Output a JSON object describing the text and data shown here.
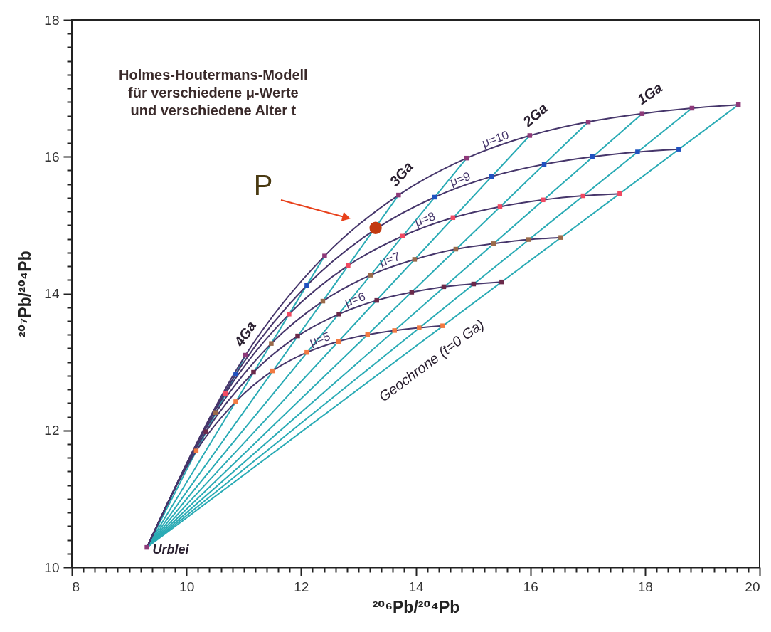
{
  "chart_data": {
    "type": "line",
    "title": "Holmes-Houtermans-Modell\nfür verschiedene μ-Werte\nund verschiedene Alter t",
    "xlabel": "²⁰⁶Pb/²⁰⁴Pb",
    "ylabel": "²⁰⁷Pb/²⁰⁴Pb",
    "xlim": [
      8,
      20
    ],
    "ylim": [
      10,
      18
    ],
    "xticks": [
      8,
      {
        "value": 8.2,
        "label": null
      },
      {
        "value": 8.4,
        "label": null
      },
      {
        "value": 8.6,
        "label": null
      },
      {
        "value": 8.8,
        "label": null
      },
      {
        "value": 9,
        "label": null
      },
      {
        "value": 9.2,
        "label": null
      },
      {
        "value": 9.4,
        "label": null
      },
      {
        "value": 9.6,
        "label": null
      },
      {
        "value": 9.8,
        "label": null
      },
      10,
      {
        "value": 10.2,
        "label": null
      },
      {
        "value": 10.4,
        "label": null
      },
      {
        "value": 10.6,
        "label": null
      },
      {
        "value": 10.8,
        "label": null
      },
      {
        "value": 11,
        "label": null
      },
      {
        "value": 11.2,
        "label": null
      },
      {
        "value": 11.4,
        "label": null
      },
      {
        "value": 11.6,
        "label": null
      },
      {
        "value": 11.8,
        "label": null
      },
      12,
      {
        "value": 12.2,
        "label": null
      },
      {
        "value": 12.4,
        "label": null
      },
      {
        "value": 12.6,
        "label": null
      },
      {
        "value": 12.8,
        "label": null
      },
      {
        "value": 13,
        "label": null
      },
      {
        "value": 13.2,
        "label": null
      },
      {
        "value": 13.4,
        "label": null
      },
      {
        "value": 13.6,
        "label": null
      },
      {
        "value": 13.8,
        "label": null
      },
      14,
      {
        "value": 14.2,
        "label": null
      },
      {
        "value": 14.4,
        "label": null
      },
      {
        "value": 14.6,
        "label": null
      },
      {
        "value": 14.8,
        "label": null
      },
      {
        "value": 15,
        "label": null
      },
      {
        "value": 15.2,
        "label": null
      },
      {
        "value": 15.4,
        "label": null
      },
      {
        "value": 15.6,
        "label": null
      },
      {
        "value": 15.8,
        "label": null
      },
      16,
      {
        "value": 16.2,
        "label": null
      },
      {
        "value": 16.4,
        "label": null
      },
      {
        "value": 16.6,
        "label": null
      },
      {
        "value": 16.8,
        "label": null
      },
      {
        "value": 17,
        "label": null
      },
      {
        "value": 17.2,
        "label": null
      },
      {
        "value": 17.4,
        "label": null
      },
      {
        "value": 17.6,
        "label": null
      },
      {
        "value": 17.8,
        "label": null
      },
      18,
      {
        "value": 18.2,
        "label": null
      },
      {
        "value": 18.4,
        "label": null
      },
      {
        "value": 18.6,
        "label": null
      },
      {
        "value": 18.8,
        "label": null
      },
      {
        "value": 19,
        "label": null
      },
      {
        "value": 19.2,
        "label": null
      },
      {
        "value": 19.4,
        "label": null
      },
      {
        "value": 19.6,
        "label": null
      },
      {
        "value": 19.8,
        "label": null
      },
      20
    ],
    "yticks": [
      10,
      {
        "value": 10.2,
        "label": null
      },
      {
        "value": 10.4,
        "label": null
      },
      {
        "value": 10.6,
        "label": null
      },
      {
        "value": 10.8,
        "label": null
      },
      {
        "value": 11,
        "label": null
      },
      {
        "value": 11.2,
        "label": null
      },
      {
        "value": 11.4,
        "label": null
      },
      {
        "value": 11.6,
        "label": null
      },
      {
        "value": 11.8,
        "label": null
      },
      12,
      {
        "value": 12.2,
        "label": null
      },
      {
        "value": 12.4,
        "label": null
      },
      {
        "value": 12.6,
        "label": null
      },
      {
        "value": 12.8,
        "label": null
      },
      {
        "value": 13,
        "label": null
      },
      {
        "value": 13.2,
        "label": null
      },
      {
        "value": 13.4,
        "label": null
      },
      {
        "value": 13.6,
        "label": null
      },
      {
        "value": 13.8,
        "label": null
      },
      14,
      {
        "value": 14.2,
        "label": null
      },
      {
        "value": 14.4,
        "label": null
      },
      {
        "value": 14.6,
        "label": null
      },
      {
        "value": 14.8,
        "label": null
      },
      {
        "value": 15,
        "label": null
      },
      {
        "value": 15.2,
        "label": null
      },
      {
        "value": 15.4,
        "label": null
      },
      {
        "value": 15.6,
        "label": null
      },
      {
        "value": 15.8,
        "label": null
      },
      16,
      {
        "value": 16.2,
        "label": null
      },
      {
        "value": 16.4,
        "label": null
      },
      {
        "value": 16.6,
        "label": null
      },
      {
        "value": 16.8,
        "label": null
      },
      {
        "value": 17,
        "label": null
      },
      {
        "value": 17.2,
        "label": null
      },
      {
        "value": 17.4,
        "label": null
      },
      {
        "value": 17.6,
        "label": null
      },
      {
        "value": 17.8,
        "label": null
      },
      18
    ],
    "series": [
      {
        "name": "4Ga",
        "color": "#2aabb5",
        "x": [
          9.31,
          11.03
        ],
        "values": [
          10.29,
          13.1
        ]
      },
      {
        "color": "#2aabb5",
        "x": [
          9.31,
          12.41
        ],
        "values": [
          10.29,
          14.55
        ]
      },
      {
        "name": "3Ga",
        "color": "#2aabb5",
        "x": [
          9.31,
          13.7
        ],
        "values": [
          10.29,
          15.44
        ]
      },
      {
        "color": "#2aabb5",
        "x": [
          9.31,
          14.89
        ],
        "values": [
          10.29,
          15.98
        ]
      },
      {
        "name": "2Ga",
        "color": "#2aabb5",
        "x": [
          9.31,
          15.99
        ],
        "values": [
          10.29,
          16.31
        ]
      },
      {
        "color": "#2aabb5",
        "x": [
          9.31,
          17.01
        ],
        "values": [
          10.29,
          16.51
        ]
      },
      {
        "name": "1Ga",
        "color": "#2aabb5",
        "x": [
          9.31,
          17.95
        ],
        "values": [
          10.29,
          16.63
        ]
      },
      {
        "color": "#2aabb5",
        "x": [
          9.31,
          18.82
        ],
        "values": [
          10.29,
          16.71
        ]
      },
      {
        "name": "Geochrone (t=0 Ga)",
        "color": "#2aabb5",
        "x": [
          9.31,
          19.63
        ],
        "values": [
          10.29,
          16.76
        ]
      },
      {
        "name": "μ=10",
        "color": "#46366b",
        "x": [
          9.31,
          11.03,
          12.41,
          13.7,
          14.89,
          15.99,
          17.01,
          17.95,
          18.82,
          19.63
        ],
        "values": [
          10.29,
          13.1,
          14.55,
          15.44,
          15.98,
          16.31,
          16.51,
          16.63,
          16.71,
          16.76
        ]
      },
      {
        "name": "μ=9",
        "color": "#46366b",
        "x": [
          9.31,
          10.86,
          12.1,
          13.26,
          14.33,
          15.32,
          16.24,
          17.08,
          17.87,
          18.59
        ],
        "values": [
          10.29,
          12.82,
          14.12,
          14.92,
          15.41,
          15.71,
          15.89,
          16.0,
          16.07,
          16.11
        ]
      },
      {
        "name": "μ=8",
        "color": "#46366b",
        "x": [
          9.31,
          10.68,
          11.79,
          12.82,
          13.77,
          14.65,
          15.47,
          16.22,
          16.92,
          17.56
        ],
        "values": [
          10.29,
          12.54,
          13.7,
          14.41,
          14.84,
          15.11,
          15.27,
          15.37,
          15.43,
          15.46
        ]
      },
      {
        "name": "μ=7",
        "color": "#46366b",
        "x": [
          9.31,
          10.51,
          11.48,
          12.38,
          13.21,
          13.98,
          14.7,
          15.36,
          15.97,
          16.53
        ],
        "values": [
          10.29,
          12.26,
          13.27,
          13.89,
          14.27,
          14.5,
          14.65,
          14.73,
          14.79,
          14.82
        ]
      },
      {
        "name": "μ=6",
        "color": "#46366b",
        "x": [
          9.31,
          10.34,
          11.17,
          11.94,
          12.66,
          13.32,
          13.93,
          14.49,
          15.01,
          15.5
        ],
        "values": [
          10.29,
          11.98,
          12.85,
          13.38,
          13.7,
          13.9,
          14.02,
          14.1,
          14.14,
          14.17
        ]
      },
      {
        "name": "μ=5",
        "color": "#46366b",
        "x": [
          9.31,
          10.17,
          10.86,
          11.5,
          12.1,
          12.65,
          13.16,
          13.63,
          14.06,
          14.47
        ],
        "values": [
          10.29,
          11.7,
          12.42,
          12.87,
          13.14,
          13.3,
          13.4,
          13.46,
          13.5,
          13.53
        ]
      },
      {
        "type": "scatter",
        "marker": "square",
        "color": "#8e3a7a",
        "x": [
          11.03,
          12.41,
          13.7,
          14.89,
          15.99,
          17.01,
          17.95,
          18.82,
          19.63
        ],
        "values": [
          13.1,
          14.55,
          15.44,
          15.98,
          16.31,
          16.51,
          16.63,
          16.71,
          16.76
        ]
      },
      {
        "type": "scatter",
        "marker": "square",
        "color": "#2052c0",
        "x": [
          10.86,
          12.1,
          13.26,
          14.33,
          15.32,
          16.24,
          17.08,
          17.87,
          18.59
        ],
        "values": [
          12.82,
          14.12,
          null,
          15.41,
          15.71,
          15.89,
          16.0,
          16.07,
          16.11
        ]
      },
      {
        "type": "scatter",
        "marker": "square",
        "color": "#f04a62",
        "x": [
          10.68,
          11.79,
          12.82,
          13.77,
          14.65,
          15.47,
          16.22,
          16.92,
          17.56
        ],
        "values": [
          12.54,
          13.7,
          14.41,
          14.84,
          15.11,
          15.27,
          15.37,
          15.43,
          15.46
        ]
      },
      {
        "type": "scatter",
        "marker": "square",
        "color": "#9a6a4a",
        "x": [
          10.51,
          11.48,
          12.38,
          13.21,
          13.98,
          14.7,
          15.36,
          15.97,
          16.53
        ],
        "values": [
          12.26,
          13.27,
          13.89,
          14.27,
          14.5,
          14.65,
          14.73,
          14.79,
          14.82
        ]
      },
      {
        "type": "scatter",
        "marker": "square",
        "color": "#6a2a4a",
        "x": [
          10.34,
          11.17,
          11.94,
          12.66,
          13.32,
          13.93,
          14.49,
          15.01,
          15.5
        ],
        "values": [
          11.98,
          12.85,
          13.38,
          13.7,
          13.9,
          14.02,
          14.1,
          14.14,
          14.17
        ]
      },
      {
        "type": "scatter",
        "marker": "square",
        "color": "#f27a42",
        "x": [
          10.17,
          10.86,
          11.5,
          12.1,
          12.65,
          13.16,
          13.63,
          14.06,
          14.47
        ],
        "values": [
          11.7,
          12.42,
          12.87,
          13.14,
          13.3,
          13.4,
          13.46,
          13.5,
          13.53
        ]
      },
      {
        "type": "scatter",
        "marker": "square",
        "color": "#8e3a7a",
        "x": [
          9.31
        ],
        "values": [
          10.29
        ]
      },
      {
        "type": "scatter",
        "marker": "circle",
        "color": "#c23a10",
        "x": [
          13.3
        ],
        "values": [
          14.96
        ]
      }
    ],
    "annotations": [
      {
        "text": "Urblei",
        "x": 9.31,
        "y": 10.29
      },
      "P"
    ]
  }
}
